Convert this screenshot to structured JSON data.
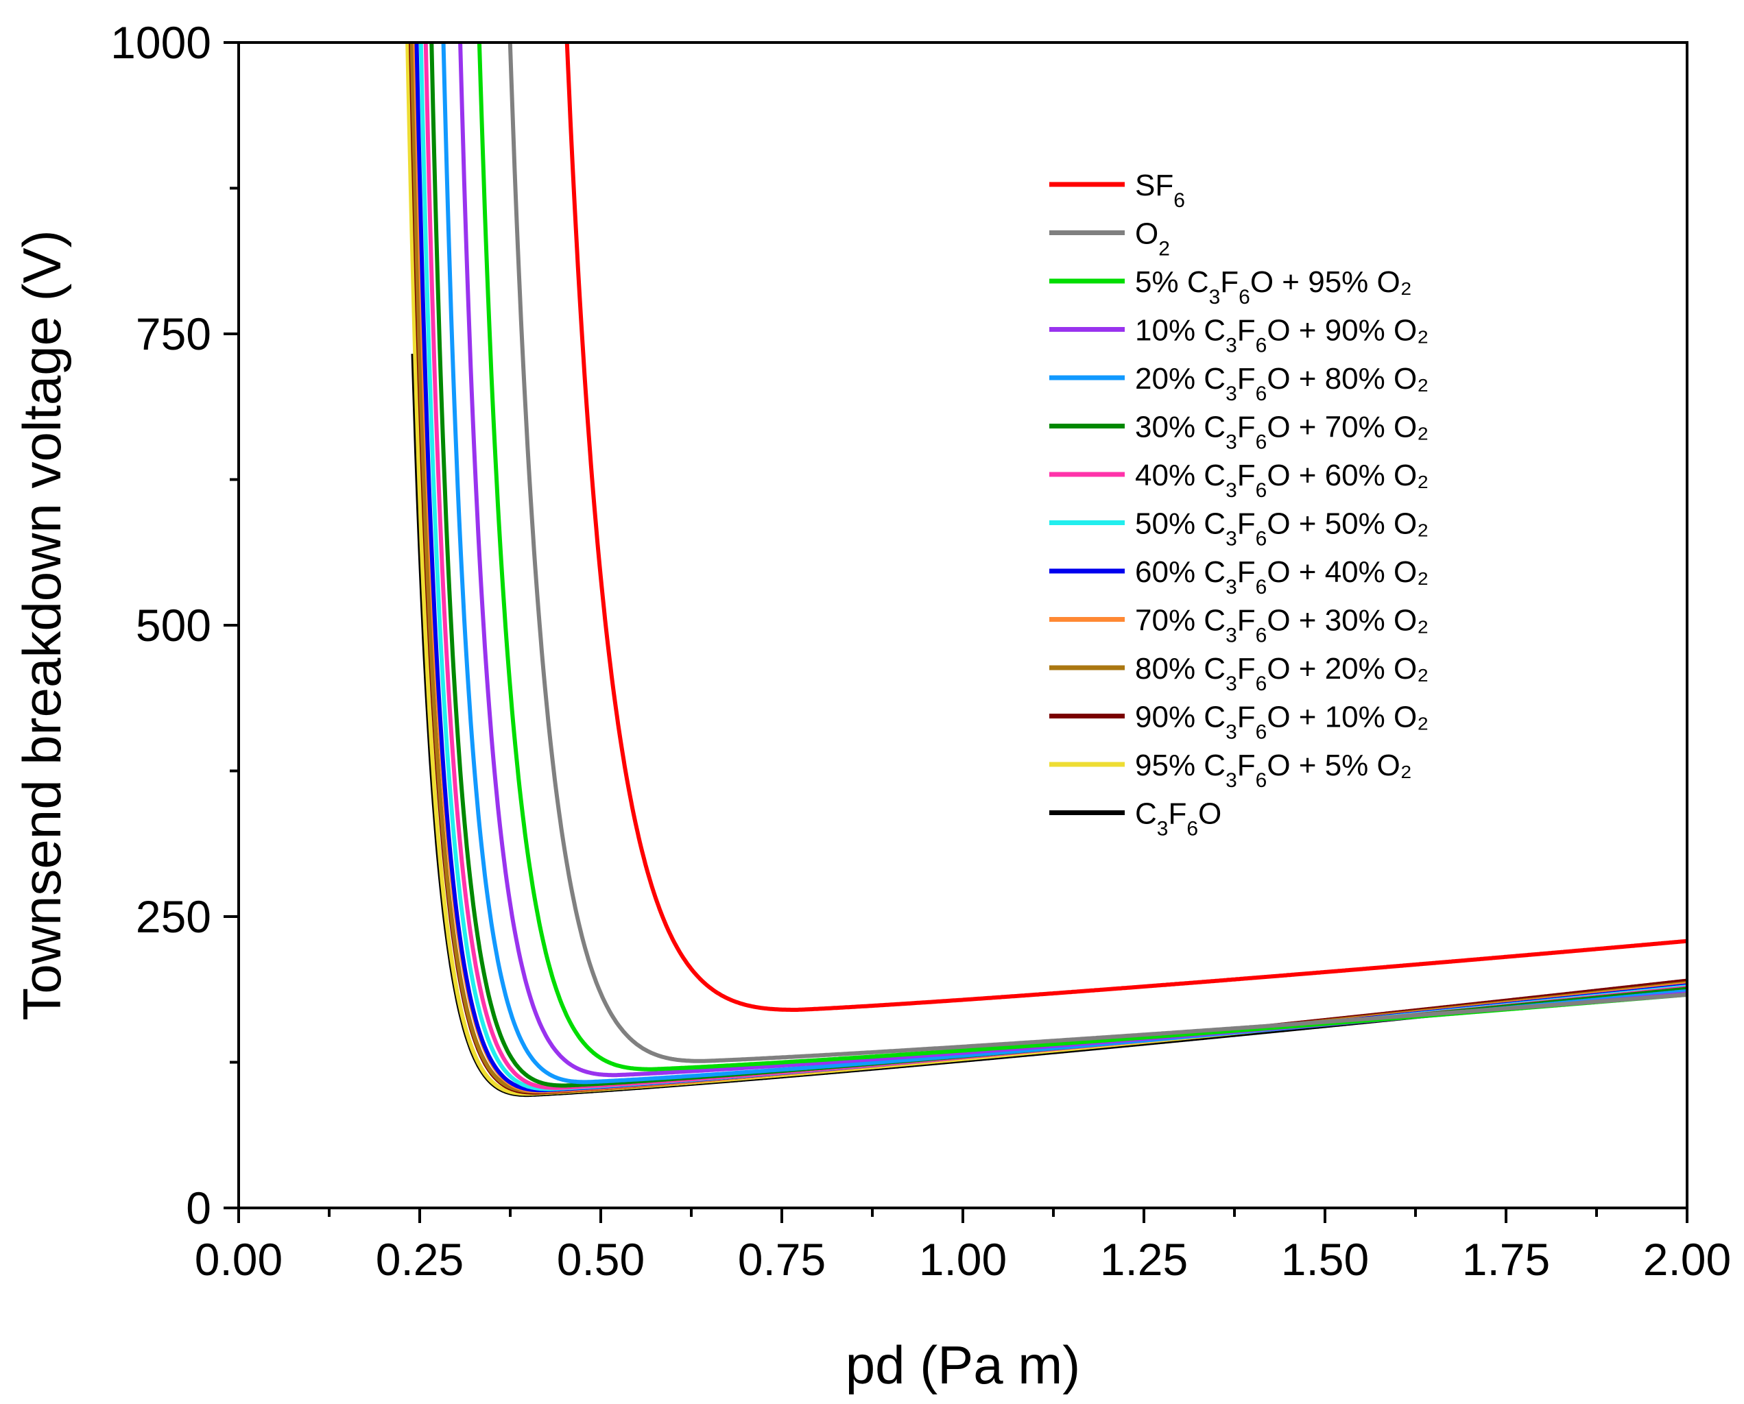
{
  "chart_data": {
    "type": "line",
    "title": "",
    "xlabel": "pd (Pa m)",
    "ylabel": "Townsend breakdown voltage (V)",
    "xlim": [
      0.0,
      2.0
    ],
    "ylim": [
      0,
      1000
    ],
    "x_ticks": [
      "0.00",
      "0.25",
      "0.50",
      "0.75",
      "1.00",
      "1.25",
      "1.50",
      "1.75",
      "2.00"
    ],
    "y_ticks": [
      "0",
      "250",
      "500",
      "750",
      "1000"
    ],
    "grid": false,
    "legend_position": "top-right",
    "series": [
      {
        "name": "SF6",
        "legend": {
          "prefix": "SF",
          "sub1": "6",
          "mid": "",
          "sub2": "",
          "suffix": ""
        },
        "color": "#ff0000",
        "x0": 0.3,
        "vmin": 170,
        "pmin": 0.77,
        "end": 229
      },
      {
        "name": "O2",
        "legend": {
          "prefix": "O",
          "sub1": "2",
          "mid": "",
          "sub2": "",
          "suffix": ""
        },
        "color": "#808080",
        "x0": 0.25,
        "vmin": 126,
        "pmin": 0.64,
        "end": 183
      },
      {
        "name": "5% C3F6O + 95% O2",
        "legend": {
          "prefix": "5% C",
          "sub1": "3",
          "mid": "F",
          "sub2": "6",
          "suffix": "O + 95% O₂"
        },
        "color": "#00dd00",
        "x0": 0.221,
        "vmin": 119,
        "pmin": 0.57,
        "end": 183
      },
      {
        "name": "10% C3F6O + 90% O2",
        "legend": {
          "prefix": "10% C",
          "sub1": "3",
          "mid": "F",
          "sub2": "6",
          "suffix": "O + 90% O₂"
        },
        "color": "#9933ee",
        "x0": 0.206,
        "vmin": 114,
        "pmin": 0.52,
        "end": 184
      },
      {
        "name": "20% C3F6O + 80% O2",
        "legend": {
          "prefix": "20% C",
          "sub1": "3",
          "mid": "F",
          "sub2": "6",
          "suffix": "O + 80% O₂"
        },
        "color": "#1199ff",
        "x0": 0.191,
        "vmin": 108,
        "pmin": 0.48,
        "end": 186
      },
      {
        "name": "30% C3F6O + 70% O2",
        "legend": {
          "prefix": "30% C",
          "sub1": "3",
          "mid": "F",
          "sub2": "6",
          "suffix": "O + 70% O₂"
        },
        "color": "#008800",
        "x0": 0.181,
        "vmin": 105,
        "pmin": 0.45,
        "end": 188
      },
      {
        "name": "40% C3F6O + 60% O2",
        "legend": {
          "prefix": "40% C",
          "sub1": "3",
          "mid": "F",
          "sub2": "6",
          "suffix": "O + 60% O₂"
        },
        "color": "#ff33aa",
        "x0": 0.174,
        "vmin": 103,
        "pmin": 0.44,
        "end": 189
      },
      {
        "name": "50% C3F6O + 50% O2",
        "legend": {
          "prefix": "50% C",
          "sub1": "3",
          "mid": "F",
          "sub2": "6",
          "suffix": "O + 50% O₂"
        },
        "color": "#22eeee",
        "x0": 0.169,
        "vmin": 102,
        "pmin": 0.43,
        "end": 190
      },
      {
        "name": "60% C3F6O + 40% O2",
        "legend": {
          "prefix": "60% C",
          "sub1": "3",
          "mid": "F",
          "sub2": "6",
          "suffix": "O + 40% O₂"
        },
        "color": "#0000ee",
        "x0": 0.165,
        "vmin": 101,
        "pmin": 0.42,
        "end": 191
      },
      {
        "name": "70% C3F6O + 30% O2",
        "legend": {
          "prefix": "70% C",
          "sub1": "3",
          "mid": "F",
          "sub2": "6",
          "suffix": "O + 30% O₂"
        },
        "color": "#ff8833",
        "x0": 0.162,
        "vmin": 100,
        "pmin": 0.42,
        "end": 192
      },
      {
        "name": "80% C3F6O + 20% O2",
        "legend": {
          "prefix": "80% C",
          "sub1": "3",
          "mid": "F",
          "sub2": "6",
          "suffix": "O + 20% O₂"
        },
        "color": "#aa7711",
        "x0": 0.16,
        "vmin": 100,
        "pmin": 0.41,
        "end": 193
      },
      {
        "name": "90% C3F6O + 10% O2",
        "legend": {
          "prefix": "90% C",
          "sub1": "3",
          "mid": "F",
          "sub2": "6",
          "suffix": "O + 10% O₂"
        },
        "color": "#7a0000",
        "x0": 0.158,
        "vmin": 99,
        "pmin": 0.41,
        "end": 195
      },
      {
        "name": "95% C3F6O + 5% O2",
        "legend": {
          "prefix": "95% C",
          "sub1": "3",
          "mid": "F",
          "sub2": "6",
          "suffix": "O + 5% O₂"
        },
        "color": "#eedd33",
        "x0": 0.156,
        "vmin": 98,
        "pmin": 0.4,
        "end": 190
      },
      {
        "name": "C3F6O",
        "legend": {
          "prefix": "C",
          "sub1": "3",
          "mid": "F",
          "sub2": "6",
          "suffix": "O"
        },
        "color": "#000000",
        "x0": 0.152,
        "vmin": 97,
        "pmin": 0.4,
        "end": 188,
        "start_v": 755
      }
    ]
  }
}
